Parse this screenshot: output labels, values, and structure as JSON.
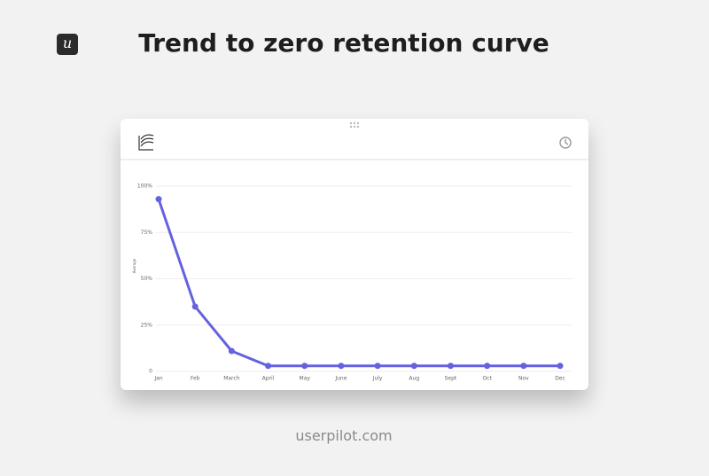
{
  "header": {
    "logo": "u",
    "title": "Trend to zero retention curve"
  },
  "chart_data": {
    "type": "line",
    "y_label": "Average",
    "categories": [
      "Jan",
      "Feb",
      "March",
      "April",
      "May",
      "June",
      "July",
      "Aug",
      "Sept",
      "Oct",
      "Nov",
      "Dec"
    ],
    "series": [
      {
        "name": "Average",
        "color": "#6561df",
        "values": [
          93,
          35,
          11,
          3,
          3,
          3,
          3,
          3,
          3,
          3,
          3,
          3
        ]
      }
    ],
    "ylim": [
      0,
      100
    ],
    "yticks": [
      0,
      {
        "value": 25,
        "label": "25%"
      },
      {
        "value": 50,
        "label": "50%"
      },
      {
        "value": 75,
        "label": "75%"
      },
      {
        "value": 100,
        "label": "100%"
      }
    ],
    "grid": true
  },
  "footer": "userpilot.com"
}
